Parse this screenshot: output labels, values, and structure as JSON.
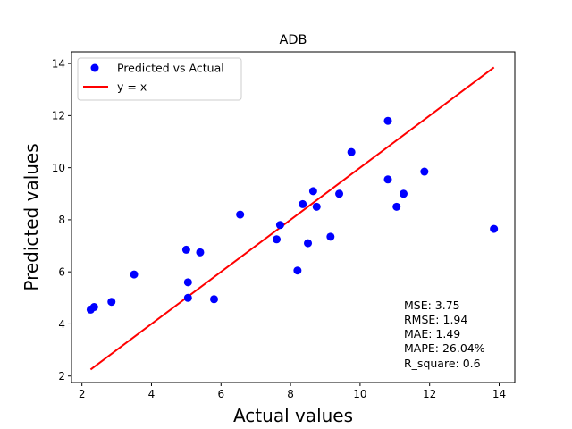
{
  "chart_data": {
    "type": "scatter",
    "title": "ADB",
    "xlabel": "Actual values",
    "ylabel": "Predicted values",
    "xlim": [
      1.7,
      14.45
    ],
    "ylim": [
      1.75,
      14.45
    ],
    "xticks": [
      2,
      4,
      6,
      8,
      10,
      12,
      14
    ],
    "yticks": [
      2,
      4,
      6,
      8,
      10,
      12,
      14
    ],
    "grid": false,
    "legend_position": "upper-left",
    "colors": {
      "points": "#0000ff",
      "line": "#ff0000"
    },
    "series": [
      {
        "name": "Predicted vs Actual",
        "kind": "scatter",
        "x": [
          2.25,
          2.35,
          2.85,
          3.5,
          5.0,
          5.05,
          5.05,
          5.4,
          5.8,
          6.55,
          7.6,
          7.7,
          8.2,
          8.35,
          8.5,
          8.65,
          8.75,
          9.15,
          9.4,
          9.75,
          10.8,
          10.8,
          11.05,
          11.25,
          11.85,
          13.85
        ],
        "y": [
          4.55,
          4.65,
          4.85,
          5.9,
          6.85,
          5.6,
          5.0,
          6.75,
          4.95,
          8.2,
          7.25,
          7.8,
          6.05,
          8.6,
          7.1,
          9.1,
          8.5,
          7.35,
          9.0,
          10.6,
          11.8,
          9.55,
          8.5,
          9.0,
          9.85,
          7.65
        ]
      },
      {
        "name": "y = x",
        "kind": "line",
        "x": [
          2.25,
          13.85
        ],
        "y": [
          2.25,
          13.85
        ]
      }
    ],
    "annotations": {
      "stats": [
        "MSE: 3.75",
        "RMSE: 1.94",
        "MAE: 1.49",
        "MAPE: 26.04%",
        "R_square: 0.6"
      ]
    }
  }
}
